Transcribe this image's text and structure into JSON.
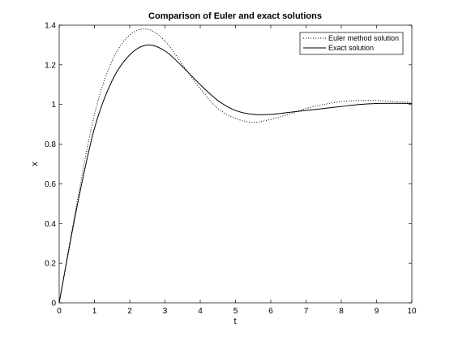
{
  "chart_data": {
    "type": "line",
    "title": "Comparison of Euler and exact solutions",
    "xlabel": "t",
    "ylabel": "x",
    "xlim": [
      0,
      10
    ],
    "ylim": [
      0,
      1.4
    ],
    "xticks": [
      "0",
      "1",
      "2",
      "3",
      "4",
      "5",
      "6",
      "7",
      "8",
      "9",
      "10"
    ],
    "yticks": [
      "0",
      "0.2",
      "0.4",
      "0.6",
      "0.8",
      "1",
      "1.2",
      "1.4"
    ],
    "grid": false,
    "legend_position": "top-right",
    "series": [
      {
        "name": "Euler method solution",
        "style": "dotted",
        "x": [
          0,
          0.5,
          1,
          1.5,
          2,
          2.5,
          3,
          3.5,
          4,
          4.5,
          5,
          5.5,
          6,
          6.5,
          7,
          7.5,
          8,
          8.5,
          9,
          9.5,
          10
        ],
        "y": [
          0,
          0.5,
          0.95,
          1.22,
          1.35,
          1.38,
          1.32,
          1.2,
          1.08,
          0.98,
          0.93,
          0.91,
          0.925,
          0.95,
          0.98,
          1.0,
          1.015,
          1.02,
          1.02,
          1.015,
          1.01
        ]
      },
      {
        "name": "Exact solution",
        "style": "solid",
        "x": [
          0,
          0.5,
          1,
          1.5,
          2,
          2.5,
          3,
          3.5,
          4,
          4.5,
          5,
          5.5,
          6,
          6.5,
          7,
          7.5,
          8,
          8.5,
          9,
          9.5,
          10
        ],
        "y": [
          0,
          0.48,
          0.88,
          1.12,
          1.25,
          1.3,
          1.27,
          1.19,
          1.1,
          1.02,
          0.97,
          0.95,
          0.95,
          0.96,
          0.97,
          0.98,
          0.99,
          1.0,
          1.005,
          1.006,
          1.005
        ]
      }
    ]
  }
}
